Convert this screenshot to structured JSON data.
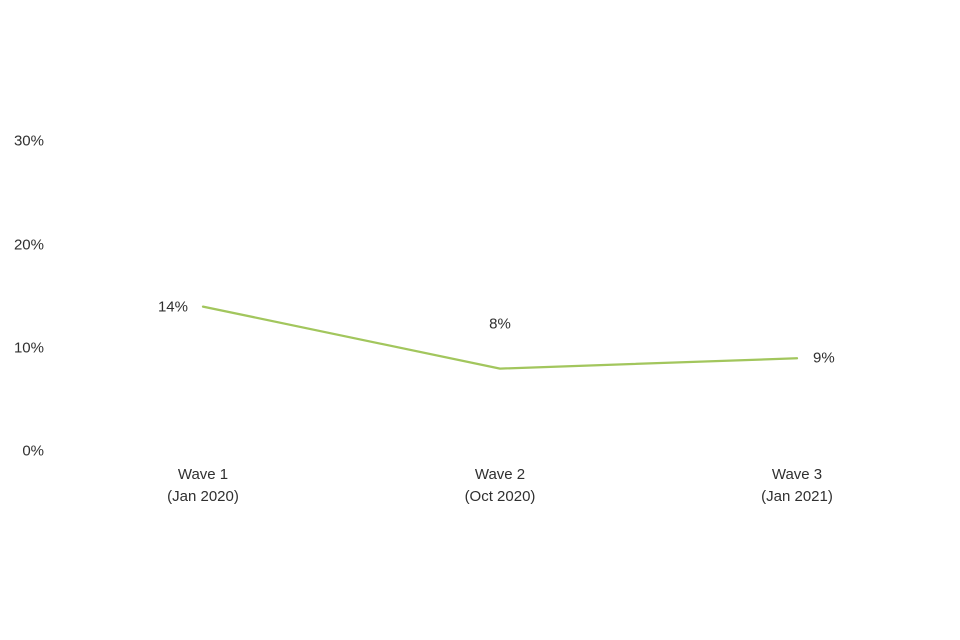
{
  "chart_data": {
    "type": "line",
    "title": "",
    "xlabel": "",
    "ylabel": "",
    "categories": [
      "Wave 1\n(Jan 2020)",
      "Wave 2\n(Oct 2020)",
      "Wave 3\n(Jan 2021)"
    ],
    "series": [
      {
        "name": "series-1",
        "values": [
          14,
          8,
          9
        ],
        "color": "#A2C65D"
      }
    ],
    "data_labels": [
      {
        "text": "14%",
        "placement": "left"
      },
      {
        "text": "8%",
        "placement": "above"
      },
      {
        "text": "9%",
        "placement": "right"
      }
    ],
    "yticks": [
      {
        "label": "30%",
        "value": 30
      },
      {
        "label": "20%",
        "value": 20
      },
      {
        "label": "10%",
        "value": 10
      },
      {
        "label": "0%",
        "value": 0
      }
    ],
    "ylim": [
      0,
      30
    ],
    "grid": false,
    "legend": "none",
    "axis_lines": false,
    "colors": {
      "line": "#A2C65D",
      "text": "#303030",
      "background": "#FFFFFF"
    }
  }
}
